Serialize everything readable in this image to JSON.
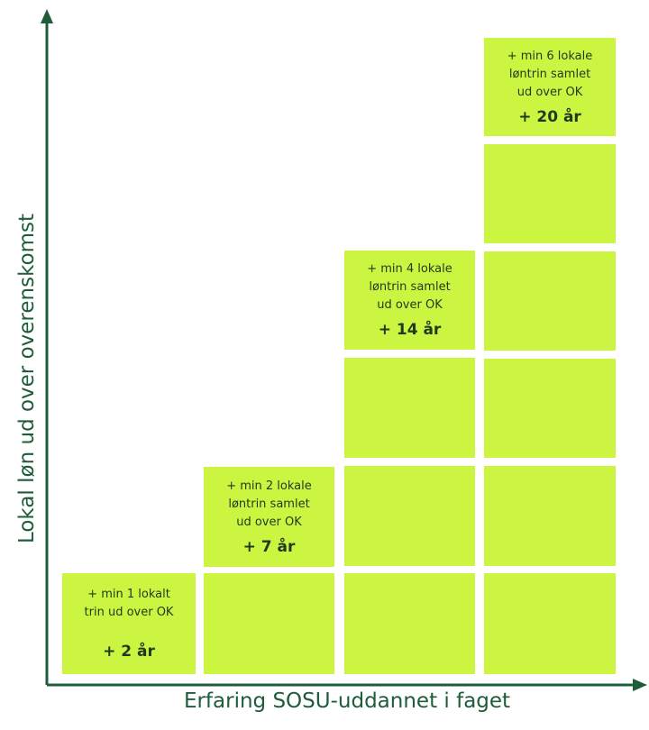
{
  "y_axis_label": "Lokal løn ud over overenskomst",
  "x_axis_label": "Erfaring SOSU-uddannet i faget",
  "colors": {
    "block": "#ccf542",
    "axis": "#1e5c3a",
    "label_text": "#1f3a1f"
  },
  "steps": [
    {
      "lines": [
        "+ min 1 lokalt",
        "trin ud over OK"
      ],
      "years": "+ 2 år",
      "blocks": 1
    },
    {
      "lines": [
        "+ min 2 lokale",
        "løntrin samlet",
        "ud over OK"
      ],
      "years": "+ 7 år",
      "blocks": 2
    },
    {
      "lines": [
        "+ min 4 lokale",
        "løntrin samlet",
        "ud over OK"
      ],
      "years": "+ 14 år",
      "blocks": 4
    },
    {
      "lines": [
        "+ min 6 lokale",
        "løntrin samlet",
        "ud over OK"
      ],
      "years": "+ 20 år",
      "blocks": 6
    }
  ]
}
